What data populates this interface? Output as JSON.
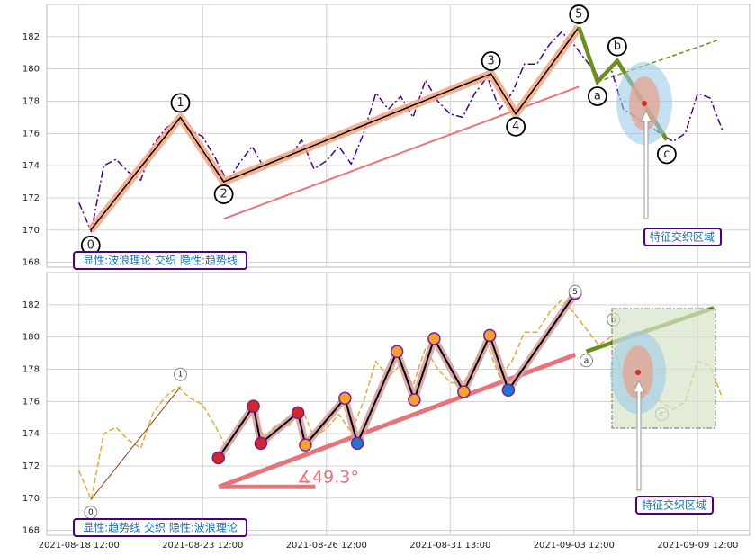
{
  "chart_data": [
    {
      "type": "line",
      "xlim": [
        -2.6,
        54.2
      ],
      "ylim": [
        167.7,
        184
      ],
      "yticks": [
        168,
        170,
        172,
        174,
        176,
        178,
        180,
        182
      ],
      "grid": true,
      "series": [
        {
          "color": "#4b0082",
          "style": "dashdot",
          "x": [
            0,
            1,
            2,
            3,
            4,
            5,
            6,
            7,
            8,
            9,
            10,
            11,
            12,
            13,
            14,
            15,
            16,
            17,
            18,
            19,
            20,
            21,
            22,
            23,
            24,
            25,
            26,
            27,
            28,
            29,
            30,
            31,
            32,
            33,
            34,
            35,
            36,
            37,
            38,
            39,
            40,
            41,
            42,
            43,
            44,
            45,
            46,
            47,
            48,
            49,
            50,
            51,
            52
          ],
          "values": [
            171.7,
            169.9,
            174,
            174.4,
            173.6,
            173.1,
            175.3,
            176.3,
            176.9,
            176.2,
            175.8,
            174.5,
            173,
            174.2,
            175.2,
            173.8,
            174.6,
            174.5,
            175.6,
            173.8,
            174.3,
            175.2,
            174.1,
            176,
            178.5,
            177.5,
            178.3,
            177,
            179.3,
            178,
            177.2,
            177,
            178.5,
            179.5,
            177.5,
            178.5,
            180.3,
            180.3,
            181.5,
            182.3,
            181.5,
            180.5,
            179.5,
            180,
            177.5,
            177,
            176.5,
            176,
            175.5,
            176,
            178.5,
            178.2,
            176.2
          ]
        }
      ],
      "waves": {
        "x": [
          0.95,
          8.2,
          11.7,
          33.3,
          35.3,
          40.4
        ],
        "values": [
          170,
          177,
          173,
          179.7,
          177.2,
          182.6
        ],
        "labels": [
          "0",
          "1",
          "2",
          "3",
          "4",
          "5"
        ],
        "color": "#000000",
        "band_color": "#f4a582"
      },
      "correction": {
        "x": [
          41.9,
          43.5,
          47.5
        ],
        "values": [
          179.2,
          180.5,
          175.6
        ],
        "labels": [
          "a",
          "b",
          "c"
        ],
        "color": "#6b8e23"
      },
      "trendlines": [
        {
          "x": [
            11.7,
            40.4
          ],
          "values": [
            170.7,
            178.9
          ],
          "color": "#e8737a",
          "width": 2
        },
        {
          "x": [
            41.9,
            51.7
          ],
          "values": [
            179.2,
            181.8
          ],
          "color": "#6b8e23",
          "width": 1.5,
          "dashed": true
        }
      ],
      "annotation": "显性:波浪理论 交织 隐性:趋势线",
      "zone_label": "特征交织区域"
    },
    {
      "type": "line",
      "xlim": [
        -2.6,
        54.2
      ],
      "ylim": [
        167.7,
        184
      ],
      "yticks": [
        168,
        170,
        172,
        174,
        176,
        178,
        180,
        182
      ],
      "grid": true,
      "xticks": [
        {
          "value": 0,
          "label": "2021-08-18 12:00"
        },
        {
          "value": 10,
          "label": "2021-08-23 12:00"
        },
        {
          "value": 20,
          "label": "2021-08-26 12:00"
        },
        {
          "value": 30,
          "label": "2021-08-31 13:00"
        },
        {
          "value": 40,
          "label": "2021-09-03 12:00"
        },
        {
          "value": 50,
          "label": "2021-09-09 12:00"
        }
      ],
      "series": [
        {
          "color": "#e8a838",
          "style": "dashed",
          "x": [
            0,
            1,
            2,
            3,
            4,
            5,
            6,
            7,
            8,
            9,
            10,
            11,
            12,
            13,
            14,
            15,
            16,
            17,
            18,
            19,
            20,
            21,
            22,
            23,
            24,
            25,
            26,
            27,
            28,
            29,
            30,
            31,
            32,
            33,
            34,
            35,
            36,
            37,
            38,
            39,
            40,
            41,
            42,
            43,
            44,
            45,
            46,
            47,
            48,
            49,
            50,
            51,
            52
          ],
          "values": [
            171.7,
            169.9,
            174,
            174.4,
            173.6,
            173.1,
            175.3,
            176.3,
            176.9,
            176.2,
            175.8,
            174.5,
            173,
            174.2,
            175.2,
            173.8,
            174.6,
            174.5,
            175.6,
            173.8,
            174.3,
            175.2,
            174.1,
            176,
            178.5,
            177.5,
            178.3,
            177,
            179.3,
            178,
            177.2,
            177,
            178.5,
            179.5,
            177.5,
            178.5,
            180.3,
            180.3,
            181.5,
            182.3,
            181.5,
            180.5,
            179.5,
            180,
            177.5,
            177,
            176.5,
            176,
            175.5,
            176,
            178.5,
            178.2,
            176.2
          ]
        }
      ],
      "waves": {
        "x": [
          0.95,
          8.2,
          40.1,
          41.0,
          43.2,
          47.1
        ],
        "values": [
          169.9,
          176.9,
          182.7,
          179.1,
          180.3,
          176
        ],
        "labels": [
          "0",
          "1",
          "5",
          "a",
          "b",
          "c"
        ],
        "color": "#8b4513"
      },
      "subwaves": {
        "x": [
          11.27,
          14.1,
          14.7,
          17.7,
          18.3,
          21.5,
          22.5,
          25.7,
          27.1,
          28.7,
          31.1,
          33.2,
          34.7,
          40.1
        ],
        "values": [
          172.5,
          175.7,
          173.4,
          175.3,
          173.3,
          176.2,
          173.4,
          179.1,
          176.1,
          179.9,
          176.6,
          180.1,
          176.7,
          182.7
        ],
        "marker_colors": [
          "#d62728",
          "#d62728",
          "#d62728",
          "#d62728",
          "#f5a030",
          "#f5a030",
          "#1f77d4",
          "#f5a030",
          "#f5a030",
          "#f5a030",
          "#f5a030",
          "#f5a030",
          "#1f77d4",
          "#f5a030"
        ],
        "color": "#000000",
        "band_color": "#d9a0a0"
      },
      "trendlines": [
        {
          "x": [
            11.3,
            40.1
          ],
          "values": [
            170.7,
            178.9
          ],
          "color": "#e8737a",
          "width": 5
        },
        {
          "x": [
            11.3,
            19.1
          ],
          "values": [
            170.7,
            170.7
          ],
          "color": "#e8737a",
          "width": 5
        },
        {
          "x": [
            41.0,
            51.3
          ],
          "values": [
            179.1,
            181.8
          ],
          "color": "#6b8e23",
          "width": 4.5
        }
      ],
      "angle_label": "∡49.3°",
      "annotation": "显性:趋势线 交织 隐性:波浪理论",
      "zone_label": "特征交织区域"
    }
  ]
}
